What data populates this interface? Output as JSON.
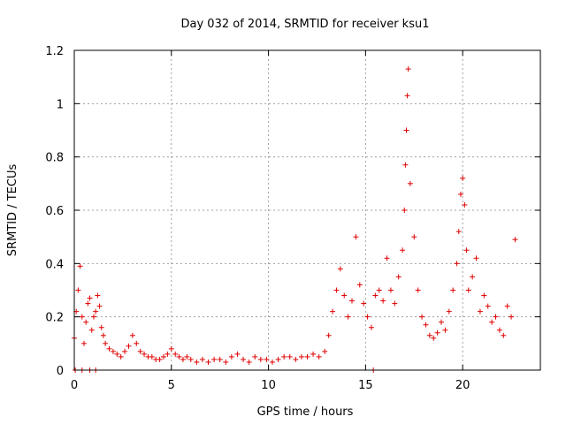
{
  "chart_data": {
    "type": "scatter",
    "title": "Day 032 of 2014, SRMTID for receiver ksu1",
    "xlabel": "GPS time / hours",
    "ylabel": "SRMTID / TECUs",
    "xlim": [
      0,
      24
    ],
    "ylim": [
      0,
      1.2
    ],
    "xticks": [
      0,
      5,
      10,
      15,
      20
    ],
    "yticks": [
      0,
      0.2,
      0.4,
      0.6,
      0.8,
      1.0,
      1.2
    ],
    "ytick_labels": [
      "0",
      "0.2",
      "0.4",
      "0.6",
      "0.8",
      "1",
      "1.2"
    ],
    "grid": true,
    "marker": "+",
    "color": "#e00000",
    "series": [
      {
        "name": "ksu1",
        "x": [
          0.0,
          0.1,
          0.2,
          0.3,
          0.4,
          0.5,
          0.6,
          0.7,
          0.8,
          0.9,
          1.0,
          1.1,
          1.2,
          1.3,
          1.4,
          1.5,
          1.6,
          1.8,
          2.0,
          2.2,
          2.4,
          2.6,
          2.8,
          3.0,
          3.2,
          3.4,
          3.6,
          3.8,
          4.0,
          4.2,
          4.4,
          4.6,
          4.8,
          5.0,
          5.2,
          5.4,
          5.6,
          5.8,
          6.0,
          6.3,
          6.6,
          6.9,
          7.2,
          7.5,
          7.8,
          8.1,
          8.4,
          8.7,
          9.0,
          9.3,
          9.6,
          9.9,
          10.2,
          10.5,
          10.8,
          11.1,
          11.4,
          11.7,
          12.0,
          12.3,
          12.6,
          12.9,
          13.1,
          13.3,
          13.5,
          13.7,
          13.9,
          14.1,
          14.3,
          14.5,
          14.7,
          14.9,
          15.1,
          15.3,
          15.5,
          15.7,
          15.9,
          16.1,
          16.3,
          16.5,
          16.7,
          16.9,
          17.0,
          17.05,
          17.1,
          17.15,
          17.2,
          17.3,
          17.5,
          17.7,
          17.9,
          18.1,
          18.3,
          18.5,
          18.7,
          18.9,
          19.1,
          19.3,
          19.5,
          19.7,
          19.8,
          19.9,
          20.0,
          20.1,
          20.2,
          20.3,
          20.5,
          20.7,
          20.9,
          21.1,
          21.3,
          21.5,
          21.7,
          21.9,
          22.1,
          22.3,
          22.5,
          22.7,
          0.05,
          0.4,
          0.8,
          1.1,
          15.4
        ],
        "y": [
          0.12,
          0.22,
          0.3,
          0.39,
          0.2,
          0.1,
          0.18,
          0.25,
          0.27,
          0.15,
          0.2,
          0.22,
          0.28,
          0.24,
          0.16,
          0.13,
          0.1,
          0.08,
          0.07,
          0.06,
          0.05,
          0.07,
          0.09,
          0.13,
          0.1,
          0.07,
          0.06,
          0.05,
          0.05,
          0.04,
          0.04,
          0.05,
          0.06,
          0.08,
          0.06,
          0.05,
          0.04,
          0.05,
          0.04,
          0.03,
          0.04,
          0.03,
          0.04,
          0.04,
          0.03,
          0.05,
          0.06,
          0.04,
          0.03,
          0.05,
          0.04,
          0.04,
          0.03,
          0.04,
          0.05,
          0.05,
          0.04,
          0.05,
          0.05,
          0.06,
          0.05,
          0.07,
          0.13,
          0.22,
          0.3,
          0.38,
          0.28,
          0.2,
          0.26,
          0.5,
          0.32,
          0.25,
          0.2,
          0.16,
          0.28,
          0.3,
          0.26,
          0.42,
          0.3,
          0.25,
          0.35,
          0.45,
          0.6,
          0.77,
          0.9,
          1.03,
          1.13,
          0.7,
          0.5,
          0.3,
          0.2,
          0.17,
          0.13,
          0.12,
          0.14,
          0.18,
          0.15,
          0.22,
          0.3,
          0.4,
          0.52,
          0.66,
          0.72,
          0.62,
          0.45,
          0.3,
          0.35,
          0.42,
          0.22,
          0.28,
          0.24,
          0.18,
          0.2,
          0.15,
          0.13,
          0.24,
          0.2,
          0.49,
          0.0,
          0.0,
          0.0,
          0.0,
          0.0
        ]
      }
    ]
  }
}
